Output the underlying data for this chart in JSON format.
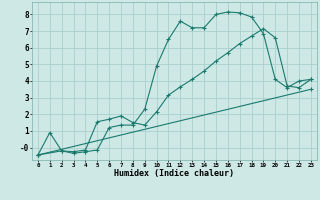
{
  "xlabel": "Humidex (Indice chaleur)",
  "background_color": "#cde8e5",
  "grid_color": "#aacfcc",
  "line_color": "#1a7a6e",
  "xlim": [
    -0.5,
    23.5
  ],
  "ylim": [
    -0.75,
    8.75
  ],
  "xticks": [
    0,
    1,
    2,
    3,
    4,
    5,
    6,
    7,
    8,
    9,
    10,
    11,
    12,
    13,
    14,
    15,
    16,
    17,
    18,
    19,
    20,
    21,
    22,
    23
  ],
  "yticks": [
    0,
    1,
    2,
    3,
    4,
    5,
    6,
    7,
    8
  ],
  "ytick_labels": [
    "-0",
    "1",
    "2",
    "3",
    "4",
    "5",
    "6",
    "7",
    "8"
  ],
  "line1_x": [
    0,
    1,
    2,
    3,
    4,
    5,
    6,
    7,
    8,
    9,
    10,
    11,
    12,
    13,
    14,
    15,
    16,
    17,
    18,
    19,
    20,
    21,
    22,
    23
  ],
  "line1_y": [
    -0.45,
    0.9,
    -0.2,
    -0.35,
    -0.25,
    -0.15,
    1.2,
    1.35,
    1.35,
    2.3,
    4.9,
    6.5,
    7.6,
    7.2,
    7.2,
    8.0,
    8.15,
    8.1,
    7.85,
    6.85,
    4.1,
    3.6,
    4.0,
    4.1
  ],
  "line2_x": [
    0,
    2,
    3,
    4,
    5,
    6,
    7,
    8,
    9,
    10,
    11,
    12,
    13,
    14,
    15,
    16,
    17,
    18,
    19,
    20,
    21,
    22,
    23
  ],
  "line2_y": [
    -0.45,
    -0.2,
    -0.25,
    -0.15,
    1.55,
    1.7,
    1.9,
    1.5,
    1.35,
    2.15,
    3.15,
    3.65,
    4.1,
    4.6,
    5.2,
    5.7,
    6.25,
    6.7,
    7.15,
    6.6,
    3.7,
    3.6,
    4.1
  ],
  "line3_x": [
    0,
    23
  ],
  "line3_y": [
    -0.45,
    3.5
  ]
}
